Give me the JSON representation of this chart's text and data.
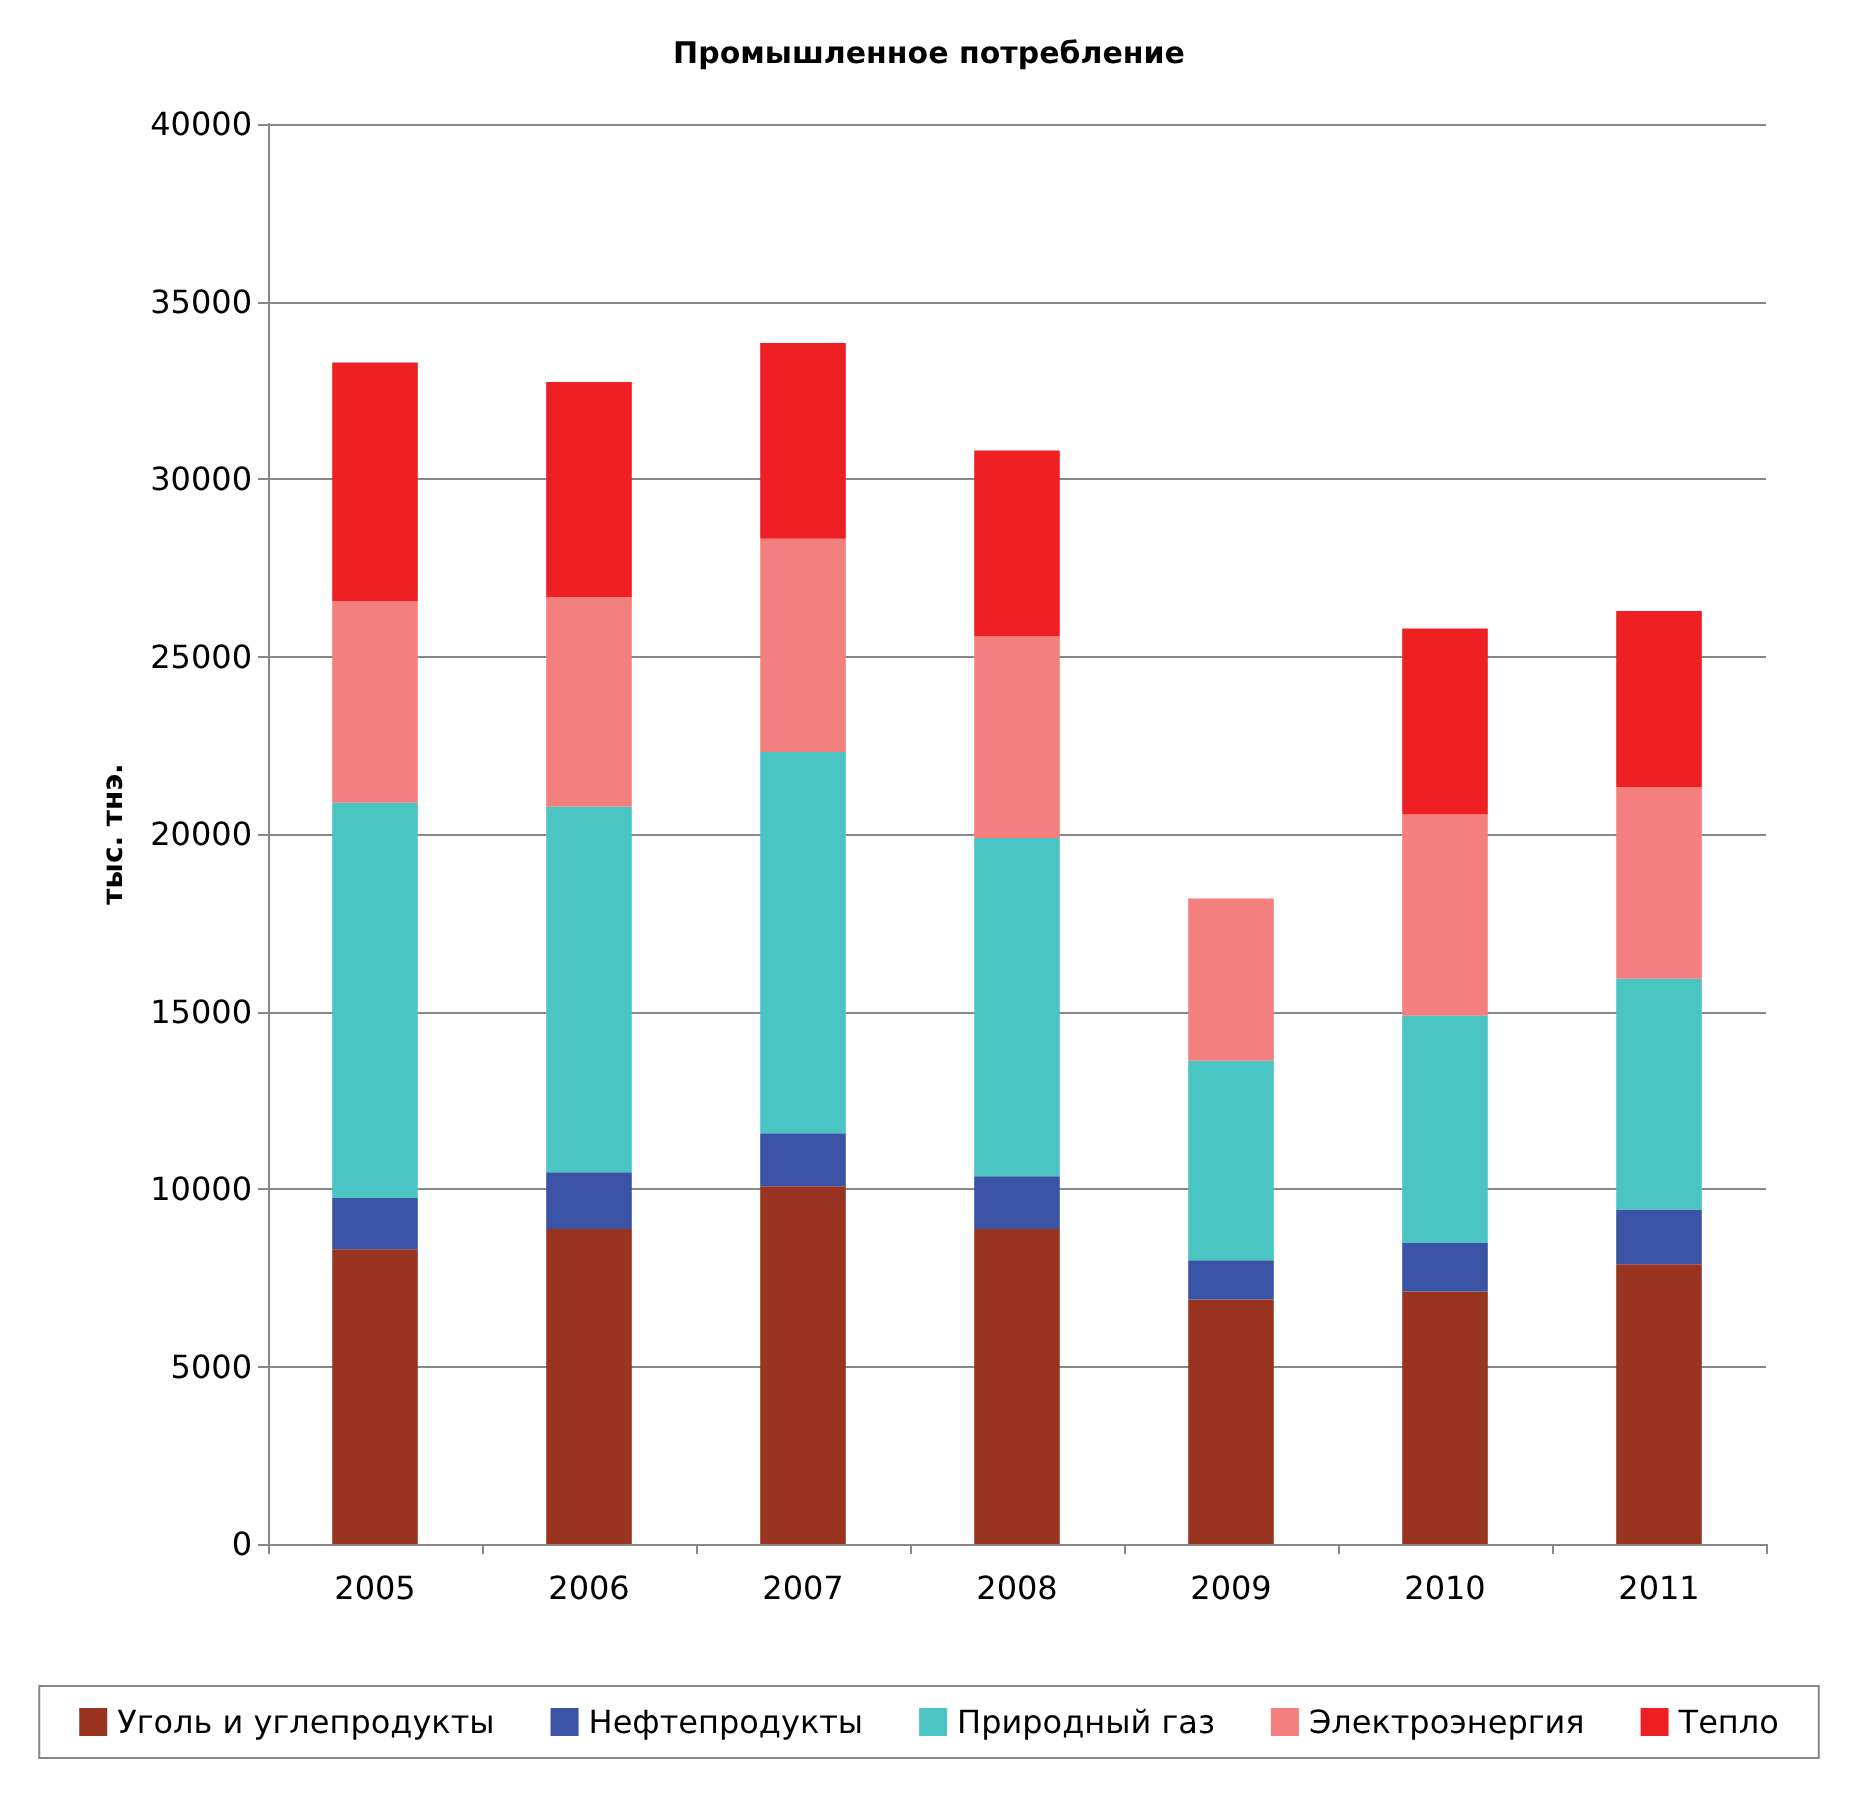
{
  "chart_data": {
    "type": "bar",
    "title": "Промышленное потребление",
    "ylabel": "тыс. тнэ.",
    "categories": [
      "2005",
      "2006",
      "2007",
      "2008",
      "2009",
      "2010",
      "2011"
    ],
    "stacked": true,
    "series": [
      {
        "name": "Уголь и углепродукты",
        "color": "#98341f",
        "values": [
          8300,
          8870,
          10080,
          8870,
          6890,
          7110,
          7880
        ]
      },
      {
        "name": "Нефтепродукты",
        "color": "#3a53a4",
        "values": [
          1450,
          1600,
          1490,
          1490,
          1100,
          1370,
          1540
        ]
      },
      {
        "name": "Природный газ",
        "color": "#4bc4c4",
        "values": [
          11130,
          10300,
          10740,
          9530,
          5620,
          6400,
          6500
        ]
      },
      {
        "name": "Электроэнергия",
        "color": "#f47f7f",
        "values": [
          5680,
          5900,
          6010,
          5670,
          4570,
          5670,
          5400
        ]
      },
      {
        "name": "Тепло",
        "color": "#ee2024",
        "values": [
          6720,
          6060,
          5510,
          5240,
          null,
          5240,
          4960
        ]
      }
    ],
    "ylim": [
      0,
      40000
    ],
    "yticks": [
      0,
      5000,
      10000,
      15000,
      20000,
      25000,
      30000,
      35000,
      40000
    ],
    "grid": "y",
    "legend": "bottom"
  }
}
